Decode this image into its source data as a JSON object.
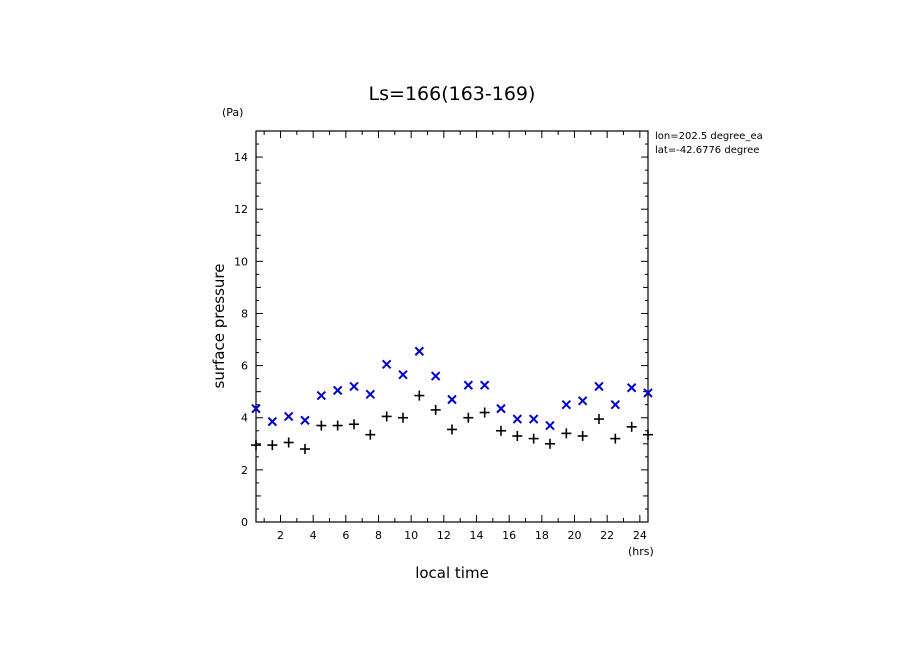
{
  "chart_data": {
    "type": "scatter",
    "title": "Ls=166(163-169)",
    "xlabel": "local time",
    "ylabel": "surface pressure",
    "x_unit": "(hrs)",
    "y_unit": "(Pa)",
    "xlim": [
      0.5,
      24.5
    ],
    "ylim": [
      0,
      15
    ],
    "x_ticks": [
      2,
      4,
      6,
      8,
      10,
      12,
      14,
      16,
      18,
      20,
      22,
      24
    ],
    "y_ticks": [
      0,
      2,
      4,
      6,
      8,
      10,
      12,
      14
    ],
    "annotations": [
      "lon=202.5 degree_ea",
      "lat=-42.6776 degree"
    ],
    "grid": false,
    "series": [
      {
        "marker": "x",
        "color": "#0000cc",
        "x": [
          0.5,
          1.5,
          2.5,
          3.5,
          4.5,
          5.5,
          6.5,
          7.5,
          8.5,
          9.5,
          10.5,
          11.5,
          12.5,
          13.5,
          14.5,
          15.5,
          16.5,
          17.5,
          18.5,
          19.5,
          20.5,
          21.5,
          22.5,
          23.5,
          24.5
        ],
        "y": [
          4.35,
          3.85,
          4.05,
          3.9,
          4.85,
          5.05,
          5.2,
          4.9,
          6.05,
          5.65,
          6.55,
          5.6,
          4.7,
          5.25,
          5.25,
          4.35,
          3.95,
          3.95,
          3.7,
          4.5,
          4.65,
          5.2,
          4.5,
          5.15,
          4.95
        ]
      },
      {
        "marker": "+",
        "color": "#000000",
        "x": [
          0.5,
          1.5,
          2.5,
          3.5,
          4.5,
          5.5,
          6.5,
          7.5,
          8.5,
          9.5,
          10.5,
          11.5,
          12.5,
          13.5,
          14.5,
          15.5,
          16.5,
          17.5,
          18.5,
          19.5,
          20.5,
          21.5,
          22.5,
          23.5,
          24.5
        ],
        "y": [
          2.95,
          2.95,
          3.05,
          2.8,
          3.7,
          3.7,
          3.75,
          3.35,
          4.05,
          4.0,
          4.85,
          4.3,
          3.55,
          4.0,
          4.2,
          3.5,
          3.3,
          3.2,
          3.0,
          3.4,
          3.3,
          3.95,
          3.2,
          3.65,
          3.35
        ]
      }
    ]
  }
}
